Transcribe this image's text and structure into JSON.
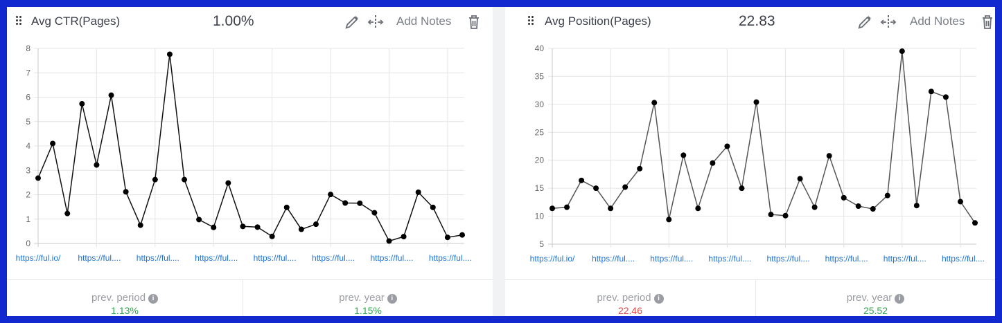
{
  "widgets": [
    {
      "title": "Avg CTR(Pages)",
      "value": "1.00%",
      "add_notes_label": "Add Notes",
      "footer": {
        "prev_period_label": "prev. period",
        "prev_period_value": "1.13%",
        "prev_period_color": "#2ca84a",
        "prev_year_label": "prev. year",
        "prev_year_value": "1.15%",
        "prev_year_color": "#2ca84a"
      }
    },
    {
      "title": "Avg Position(Pages)",
      "value": "22.83",
      "add_notes_label": "Add Notes",
      "footer": {
        "prev_period_label": "prev. period",
        "prev_period_value": "22.46",
        "prev_period_color": "#e04848",
        "prev_year_label": "prev. year",
        "prev_year_value": "25.52",
        "prev_year_color": "#2ca84a"
      }
    }
  ],
  "icons": [
    "drag-handle-icon",
    "pencil-icon",
    "move-horizontal-icon",
    "trash-icon",
    "info-icon"
  ],
  "chart_data": [
    {
      "type": "line",
      "title": "Avg CTR(Pages)",
      "x_tick_labels": [
        "https://ful.io/",
        "https://ful....",
        "https://ful....",
        "https://ful....",
        "https://ful....",
        "https://ful....",
        "https://ful....",
        "https://ful...."
      ],
      "ylim": [
        0,
        8
      ],
      "y_ticks": [
        0,
        1,
        2,
        3,
        4,
        5,
        6,
        7,
        8
      ],
      "grid": true,
      "values": [
        2.68,
        4.1,
        1.23,
        5.73,
        3.22,
        6.08,
        2.12,
        0.75,
        2.62,
        7.76,
        2.62,
        0.98,
        0.66,
        2.48,
        0.7,
        0.67,
        0.29,
        1.48,
        0.58,
        0.79,
        2.01,
        1.66,
        1.65,
        1.26,
        0.1,
        0.28,
        2.1,
        1.48,
        0.25,
        0.35
      ]
    },
    {
      "type": "line",
      "title": "Avg Position(Pages)",
      "x_tick_labels": [
        "https://ful.io/",
        "https://ful....",
        "https://ful....",
        "https://ful....",
        "https://ful....",
        "https://ful....",
        "https://ful....",
        "https://ful...."
      ],
      "ylim": [
        5,
        40
      ],
      "y_ticks": [
        5,
        10,
        15,
        20,
        25,
        30,
        35,
        40
      ],
      "grid": true,
      "values": [
        11.4,
        11.6,
        16.4,
        15.0,
        11.4,
        15.2,
        18.5,
        30.3,
        9.4,
        20.9,
        11.4,
        19.5,
        22.5,
        15.0,
        30.4,
        10.3,
        10.1,
        16.7,
        11.6,
        20.8,
        13.3,
        11.8,
        11.3,
        13.7,
        39.5,
        11.9,
        32.3,
        31.3,
        12.6,
        8.8
      ]
    }
  ]
}
